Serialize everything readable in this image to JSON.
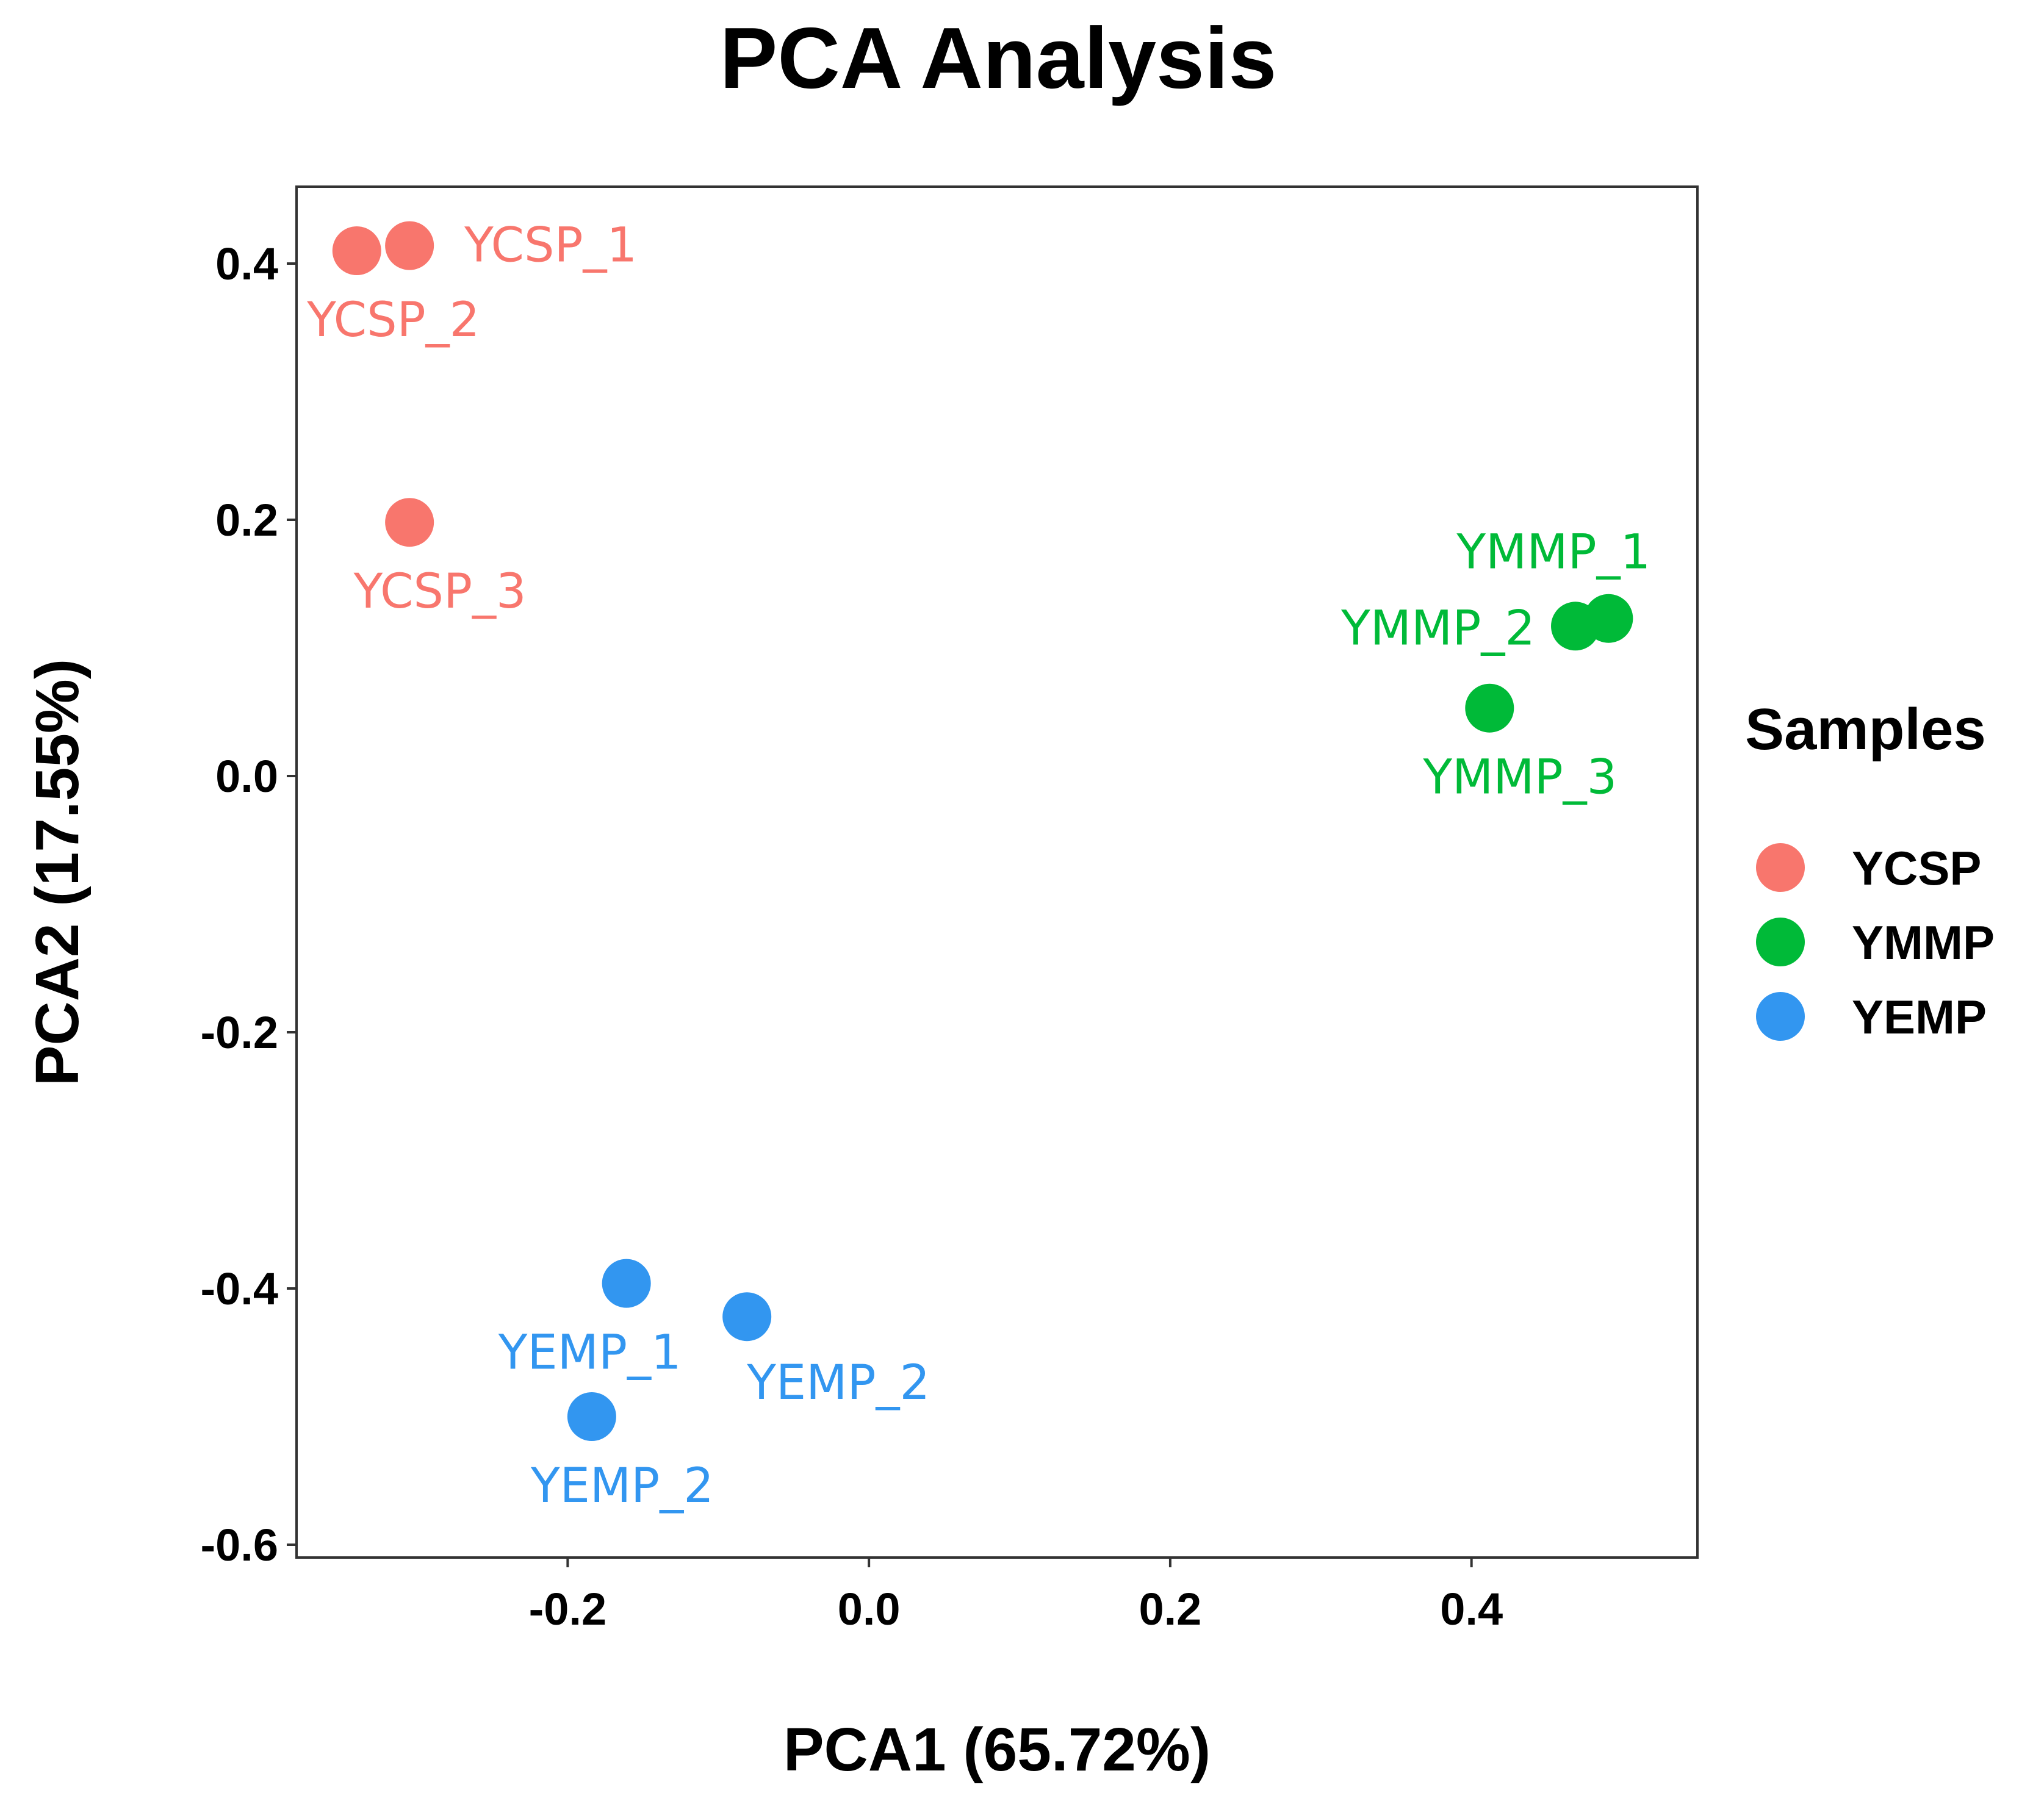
{
  "chart_data": {
    "type": "scatter",
    "title": "PCA Analysis",
    "xlabel": "PCA1 (65.72%)",
    "ylabel": "PCA2 (17.55%)",
    "xlim": [
      -0.38,
      0.55
    ],
    "ylim": [
      -0.61,
      0.46
    ],
    "xticks": [
      -0.2,
      0.0,
      0.2,
      0.4
    ],
    "xtick_labels": [
      "-0.2",
      "0.0",
      "0.2",
      "0.4"
    ],
    "yticks": [
      -0.6,
      -0.4,
      -0.2,
      0.0,
      0.2,
      0.4
    ],
    "ytick_labels": [
      "-0.6",
      "-0.4",
      "-0.2",
      "0.0",
      "0.2",
      "0.4"
    ],
    "grid": false,
    "legend": {
      "title": "Samples",
      "position": "right"
    },
    "series": [
      {
        "name": "YCSP",
        "color": "#F8766D",
        "points": [
          {
            "x": -0.34,
            "y": 0.41,
            "label": "YCSP_2",
            "label_anchor": "below"
          },
          {
            "x": -0.305,
            "y": 0.414,
            "label": "YCSP_1",
            "label_anchor": "right"
          },
          {
            "x": -0.305,
            "y": 0.198,
            "label": "YCSP_3",
            "label_anchor": "below"
          }
        ]
      },
      {
        "name": "YMMP",
        "color": "#00BA38",
        "points": [
          {
            "x": 0.491,
            "y": 0.123,
            "label": "YMMP_1",
            "label_anchor": "above"
          },
          {
            "x": 0.469,
            "y": 0.117,
            "label": "YMMP_2",
            "label_anchor": "left"
          },
          {
            "x": 0.412,
            "y": 0.053,
            "label": "YMMP_3",
            "label_anchor": "below"
          }
        ]
      },
      {
        "name": "YEMP",
        "color": "#3296F0",
        "points": [
          {
            "x": -0.161,
            "y": -0.396,
            "label": "YEMP_1",
            "label_anchor": "below"
          },
          {
            "x": -0.081,
            "y": -0.422,
            "label": "YEMP_2",
            "label_anchor": "below-right"
          },
          {
            "x": -0.184,
            "y": -0.5,
            "label": "YEMP_2",
            "label_anchor": "below"
          }
        ]
      }
    ]
  }
}
